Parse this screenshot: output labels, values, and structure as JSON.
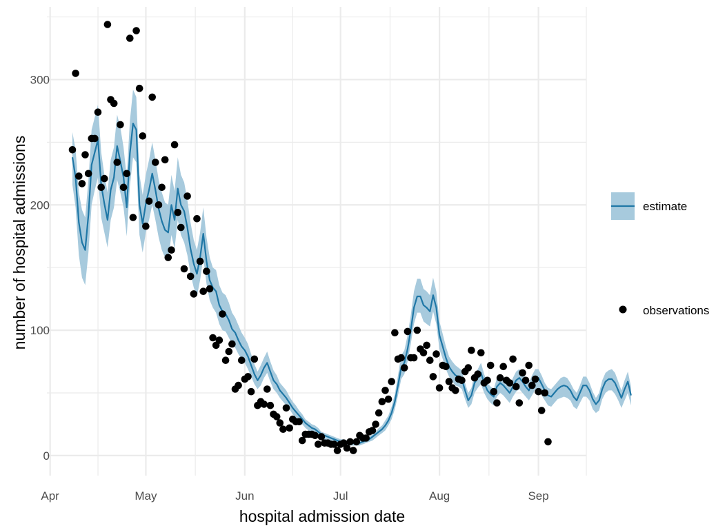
{
  "chart_data": {
    "type": "line",
    "xlabel": "hospital admission date",
    "ylabel": "number of hospital admissions",
    "x_tick_labels": [
      "Apr",
      "May",
      "Jun",
      "Jul",
      "Aug",
      "Sep"
    ],
    "x_tick_days": [
      0,
      30,
      61,
      91,
      122,
      153
    ],
    "x_range": [
      -1,
      168
    ],
    "y_tick_labels": [
      "0",
      "100",
      "200",
      "300"
    ],
    "y_ticks": [
      0,
      100,
      200,
      300
    ],
    "ylim": [
      -16,
      358
    ],
    "grid": true,
    "legend_position": "right",
    "colors": {
      "estimate_line": "#1f77a6",
      "estimate_band": "#a7cadd",
      "observations": "#000000",
      "grid": "#ebebeb"
    },
    "series": [
      {
        "name": "estimate",
        "kind": "line_with_ribbon",
        "x_start_day": 7,
        "y": [
          238,
          222,
          186,
          170,
          164,
          192,
          232,
          242,
          252,
          216,
          201,
          188,
          212,
          222,
          247,
          235,
          222,
          198,
          241,
          265,
          260,
          200,
          185,
          201,
          212,
          225,
          212,
          197,
          187,
          180,
          178,
          200,
          188,
          213,
          200,
          195,
          182,
          165,
          153,
          145,
          158,
          177,
          155,
          140,
          134,
          131,
          120,
          115,
          113,
          108,
          101,
          98,
          92,
          87,
          84,
          79,
          72,
          65,
          60,
          64,
          70,
          74,
          67,
          60,
          57,
          52,
          49,
          46,
          42,
          38,
          35,
          32,
          29,
          26,
          24,
          22,
          21,
          19,
          17,
          16,
          15,
          14,
          13,
          12,
          11,
          11,
          10,
          10,
          10,
          10,
          10,
          11,
          12,
          13,
          15,
          17,
          19,
          21,
          24,
          28,
          34,
          43,
          56,
          70,
          74,
          85,
          100,
          118,
          127,
          127,
          120,
          118,
          115,
          128,
          118,
          96,
          87,
          78,
          71,
          67,
          64,
          63,
          61,
          52,
          44,
          48,
          58,
          62,
          66,
          58,
          52,
          49,
          47,
          55,
          58,
          56,
          53,
          50,
          55,
          60,
          62,
          59,
          55,
          52,
          57,
          62,
          62,
          57,
          52,
          48,
          47,
          50,
          53,
          55,
          56,
          55,
          52,
          47,
          44,
          50,
          56,
          56,
          52,
          45,
          41,
          44,
          53,
          59,
          61,
          61,
          58,
          52,
          46,
          53,
          59,
          48
        ],
        "lower": [
          216,
          198,
          160,
          142,
          136,
          162,
          200,
          212,
          222,
          190,
          178,
          166,
          188,
          198,
          220,
          210,
          198,
          175,
          215,
          238,
          234,
          176,
          162,
          178,
          188,
          200,
          188,
          174,
          164,
          158,
          156,
          176,
          165,
          188,
          176,
          170,
          160,
          145,
          134,
          127,
          140,
          158,
          137,
          124,
          118,
          114,
          105,
          100,
          99,
          94,
          89,
          86,
          81,
          77,
          74,
          69,
          63,
          57,
          53,
          56,
          62,
          66,
          59,
          53,
          50,
          46,
          43,
          40,
          37,
          33,
          30,
          28,
          25,
          22,
          20,
          19,
          18,
          16,
          14,
          13,
          12,
          11,
          10,
          9,
          9,
          8,
          8,
          8,
          8,
          8,
          8,
          9,
          10,
          11,
          12,
          14,
          16,
          18,
          20,
          24,
          29,
          37,
          48,
          61,
          65,
          75,
          89,
          105,
          114,
          114,
          107,
          105,
          103,
          115,
          105,
          85,
          77,
          69,
          63,
          59,
          56,
          55,
          53,
          45,
          38,
          41,
          50,
          54,
          57,
          50,
          45,
          42,
          40,
          47,
          50,
          48,
          45,
          42,
          47,
          51,
          53,
          50,
          47,
          44,
          48,
          53,
          53,
          48,
          44,
          40,
          39,
          42,
          45,
          46,
          47,
          46,
          44,
          39,
          37,
          42,
          47,
          47,
          44,
          37,
          34,
          36,
          45,
          50,
          52,
          52,
          49,
          44,
          38,
          44,
          50,
          40
        ],
        "upper": [
          258,
          244,
          210,
          196,
          190,
          220,
          260,
          270,
          280,
          242,
          224,
          210,
          236,
          246,
          272,
          262,
          246,
          222,
          267,
          292,
          286,
          224,
          208,
          224,
          236,
          250,
          236,
          220,
          210,
          202,
          200,
          224,
          211,
          238,
          224,
          218,
          204,
          186,
          172,
          164,
          178,
          198,
          174,
          158,
          150,
          148,
          136,
          130,
          128,
          122,
          114,
          110,
          104,
          98,
          94,
          89,
          81,
          73,
          67,
          72,
          78,
          83,
          75,
          68,
          64,
          58,
          55,
          52,
          47,
          43,
          40,
          36,
          33,
          29,
          27,
          25,
          24,
          22,
          19,
          18,
          17,
          16,
          15,
          14,
          13,
          13,
          12,
          12,
          12,
          12,
          12,
          13,
          14,
          15,
          17,
          19,
          22,
          24,
          28,
          32,
          39,
          49,
          64,
          80,
          84,
          96,
          112,
          131,
          141,
          141,
          133,
          131,
          128,
          142,
          131,
          107,
          97,
          87,
          79,
          75,
          72,
          70,
          68,
          58,
          50,
          54,
          65,
          69,
          74,
          65,
          58,
          55,
          53,
          62,
          65,
          63,
          60,
          56,
          62,
          67,
          69,
          66,
          62,
          58,
          64,
          69,
          69,
          64,
          58,
          54,
          53,
          56,
          59,
          62,
          63,
          62,
          58,
          53,
          50,
          56,
          63,
          63,
          58,
          51,
          46,
          50,
          60,
          66,
          68,
          69,
          66,
          59,
          52,
          60,
          67,
          55
        ]
      },
      {
        "name": "observations",
        "kind": "scatter",
        "points": [
          [
            7,
            244
          ],
          [
            8,
            305
          ],
          [
            9,
            223
          ],
          [
            10,
            217
          ],
          [
            11,
            240
          ],
          [
            12,
            225
          ],
          [
            13,
            253
          ],
          [
            14,
            253
          ],
          [
            15,
            274
          ],
          [
            16,
            214
          ],
          [
            17,
            221
          ],
          [
            18,
            344
          ],
          [
            19,
            284
          ],
          [
            20,
            281
          ],
          [
            21,
            234
          ],
          [
            22,
            264
          ],
          [
            23,
            214
          ],
          [
            24,
            225
          ],
          [
            25,
            333
          ],
          [
            26,
            190
          ],
          [
            27,
            339
          ],
          [
            28,
            293
          ],
          [
            29,
            255
          ],
          [
            30,
            183
          ],
          [
            31,
            203
          ],
          [
            32,
            286
          ],
          [
            33,
            234
          ],
          [
            34,
            200
          ],
          [
            35,
            214
          ],
          [
            36,
            236
          ],
          [
            37,
            158
          ],
          [
            38,
            164
          ],
          [
            39,
            248
          ],
          [
            40,
            194
          ],
          [
            41,
            182
          ],
          [
            42,
            149
          ],
          [
            43,
            207
          ],
          [
            44,
            143
          ],
          [
            45,
            129
          ],
          [
            46,
            189
          ],
          [
            47,
            155
          ],
          [
            48,
            131
          ],
          [
            49,
            147
          ],
          [
            50,
            133
          ],
          [
            51,
            94
          ],
          [
            52,
            88
          ],
          [
            53,
            92
          ],
          [
            54,
            113
          ],
          [
            55,
            76
          ],
          [
            56,
            83
          ],
          [
            57,
            89
          ],
          [
            58,
            53
          ],
          [
            59,
            56
          ],
          [
            60,
            76
          ],
          [
            61,
            61
          ],
          [
            62,
            63
          ],
          [
            63,
            51
          ],
          [
            64,
            77
          ],
          [
            65,
            40
          ],
          [
            66,
            43
          ],
          [
            67,
            41
          ],
          [
            68,
            53
          ],
          [
            69,
            40
          ],
          [
            70,
            33
          ],
          [
            71,
            31
          ],
          [
            72,
            26
          ],
          [
            73,
            21
          ],
          [
            74,
            38
          ],
          [
            75,
            22
          ],
          [
            76,
            29
          ],
          [
            77,
            27
          ],
          [
            78,
            27
          ],
          [
            79,
            12
          ],
          [
            80,
            17
          ],
          [
            81,
            17
          ],
          [
            82,
            17
          ],
          [
            83,
            16
          ],
          [
            84,
            9
          ],
          [
            85,
            15
          ],
          [
            86,
            10
          ],
          [
            87,
            10
          ],
          [
            88,
            9
          ],
          [
            89,
            9
          ],
          [
            90,
            4
          ],
          [
            91,
            9
          ],
          [
            92,
            10
          ],
          [
            93,
            6
          ],
          [
            94,
            11
          ],
          [
            95,
            4
          ],
          [
            96,
            11
          ],
          [
            97,
            16
          ],
          [
            98,
            14
          ],
          [
            99,
            14
          ],
          [
            100,
            19
          ],
          [
            101,
            20
          ],
          [
            102,
            25
          ],
          [
            103,
            34
          ],
          [
            104,
            43
          ],
          [
            105,
            52
          ],
          [
            106,
            45
          ],
          [
            107,
            59
          ],
          [
            108,
            98
          ],
          [
            109,
            77
          ],
          [
            110,
            78
          ],
          [
            111,
            70
          ],
          [
            112,
            99
          ],
          [
            113,
            78
          ],
          [
            114,
            78
          ],
          [
            115,
            100
          ],
          [
            116,
            85
          ],
          [
            117,
            82
          ],
          [
            118,
            88
          ],
          [
            119,
            76
          ],
          [
            120,
            63
          ],
          [
            121,
            81
          ],
          [
            122,
            54
          ],
          [
            123,
            72
          ],
          [
            124,
            71
          ],
          [
            125,
            59
          ],
          [
            126,
            54
          ],
          [
            127,
            52
          ],
          [
            128,
            61
          ],
          [
            129,
            60
          ],
          [
            130,
            67
          ],
          [
            131,
            70
          ],
          [
            132,
            84
          ],
          [
            133,
            62
          ],
          [
            134,
            65
          ],
          [
            135,
            82
          ],
          [
            136,
            58
          ],
          [
            137,
            60
          ],
          [
            138,
            72
          ],
          [
            139,
            51
          ],
          [
            140,
            42
          ],
          [
            141,
            62
          ],
          [
            142,
            71
          ],
          [
            143,
            60
          ],
          [
            144,
            58
          ],
          [
            145,
            77
          ],
          [
            146,
            55
          ],
          [
            147,
            42
          ],
          [
            148,
            66
          ],
          [
            149,
            60
          ],
          [
            150,
            72
          ],
          [
            151,
            56
          ],
          [
            152,
            61
          ],
          [
            153,
            51
          ],
          [
            154,
            36
          ],
          [
            155,
            50
          ],
          [
            156,
            11
          ]
        ]
      }
    ]
  }
}
